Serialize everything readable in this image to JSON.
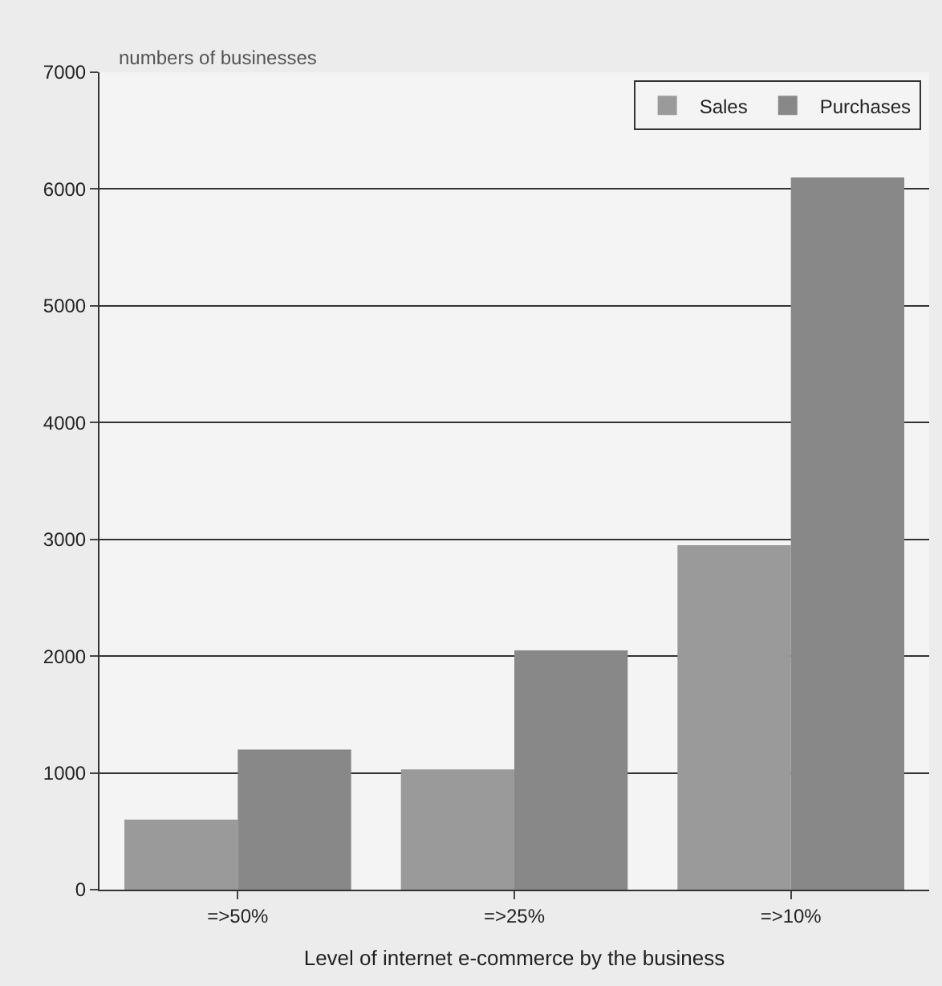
{
  "chart_data": {
    "type": "bar",
    "ylabel": "numbers of businesses",
    "xlabel": "Level of internet e-commerce by the business",
    "categories": [
      "=>50%",
      "=>25%",
      "=>10%"
    ],
    "series": [
      {
        "name": "Sales",
        "color": "#9a9a9a",
        "values": [
          600,
          1030,
          2950
        ]
      },
      {
        "name": "Purchases",
        "color": "#888888",
        "values": [
          1200,
          2050,
          6100
        ]
      }
    ],
    "ylim": [
      0,
      7000
    ],
    "yticks": [
      0,
      1000,
      2000,
      3000,
      4000,
      5000,
      6000,
      7000
    ],
    "grid": "y",
    "legend": "top right"
  }
}
